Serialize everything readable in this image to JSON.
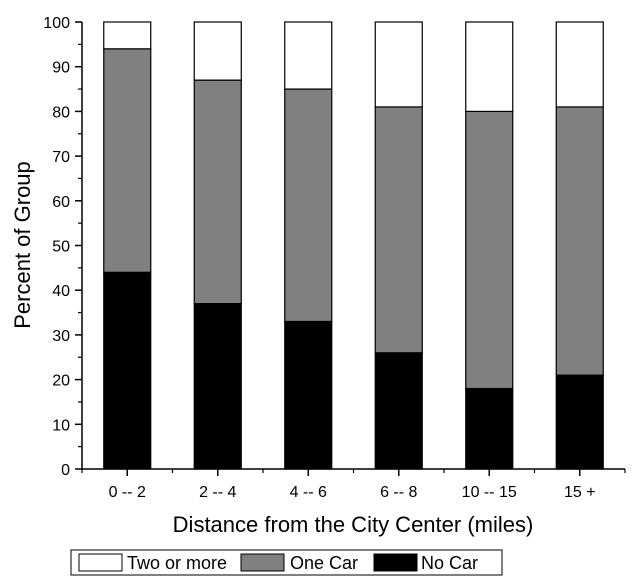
{
  "chart_data": {
    "type": "bar",
    "stacked": true,
    "categories": [
      "0 -- 2",
      "2 -- 4",
      "4 -- 6",
      "6 -- 8",
      "10 -- 15",
      "15 +"
    ],
    "series": [
      {
        "name": "No Car",
        "color": "#000000",
        "values": [
          44,
          37,
          33,
          26,
          18,
          21
        ]
      },
      {
        "name": "One Car",
        "color": "#808080",
        "values": [
          50,
          50,
          52,
          55,
          62,
          60
        ]
      },
      {
        "name": "Two or more",
        "color": "#ffffff",
        "values": [
          6,
          13,
          15,
          19,
          20,
          19
        ]
      }
    ],
    "xlabel": "Distance from the City Center (miles)",
    "ylabel": "Percent of Group",
    "ylim": [
      0,
      100
    ],
    "yticks": [
      0,
      10,
      20,
      30,
      40,
      50,
      60,
      70,
      80,
      90,
      100
    ],
    "grid": false,
    "legend": {
      "position": "bottom",
      "order": [
        "Two or more",
        "One Car",
        "No Car"
      ]
    }
  }
}
